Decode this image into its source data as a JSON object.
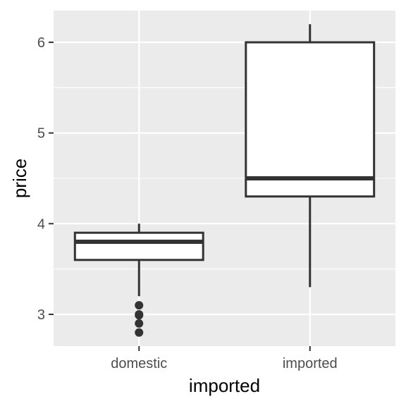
{
  "chart_data": {
    "type": "boxplot",
    "title": "",
    "xlabel": "imported",
    "ylabel": "price",
    "ylim": [
      2.65,
      6.35
    ],
    "y_ticks": [
      3,
      4,
      5,
      6
    ],
    "y_tick_labels": [
      "3",
      "4",
      "5",
      "6"
    ],
    "grid": true,
    "categories": [
      "domestic",
      "imported"
    ],
    "boxes": [
      {
        "category": "domestic",
        "whisker_low": 3.2,
        "q1": 3.6,
        "median": 3.8,
        "q3": 3.9,
        "whisker_high": 4.0,
        "outliers": [
          3.1,
          3.0,
          2.99,
          2.9,
          2.8
        ]
      },
      {
        "category": "imported",
        "whisker_low": 3.3,
        "q1": 4.3,
        "median": 4.5,
        "q3": 6.0,
        "whisker_high": 6.2,
        "outliers": []
      }
    ],
    "colors": {
      "panel_background": "#ebebeb",
      "grid_major": "#ffffff",
      "box_fill": "#ffffff",
      "box_stroke": "#333333",
      "tick_text": "#4d4d4d",
      "title_text": "#000000"
    }
  }
}
